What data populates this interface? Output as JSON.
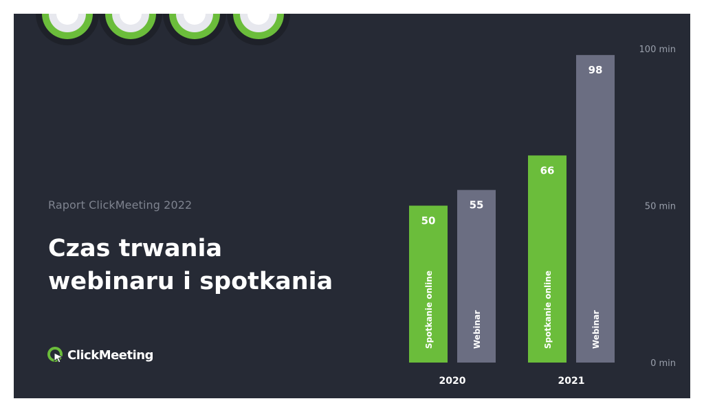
{
  "report_label": "Raport ClickMeeting 2022",
  "title_line1": "Czas trwania",
  "title_line2": "webinaru i spotkania",
  "logo_text": "ClickMeeting",
  "colors": {
    "background": "#262a35",
    "accent_green": "#6bbd3b",
    "bar_gray": "#6b6e82",
    "text_muted": "#7e838f",
    "white": "#ffffff"
  },
  "chart_data": {
    "type": "bar",
    "categories": [
      "2020",
      "2021"
    ],
    "series": [
      {
        "name": "Spotkanie online",
        "values": [
          50,
          66
        ],
        "color": "#6bbd3b"
      },
      {
        "name": "Webinar",
        "values": [
          55,
          98
        ],
        "color": "#6b6e82"
      }
    ],
    "ylim": [
      0,
      100
    ],
    "y_ticks": [
      {
        "value": 0,
        "label": "0 min"
      },
      {
        "value": 50,
        "label": "50 min"
      },
      {
        "value": 100,
        "label": "100 min"
      }
    ],
    "grid": true,
    "legend": "none (series names printed inside bars)"
  }
}
